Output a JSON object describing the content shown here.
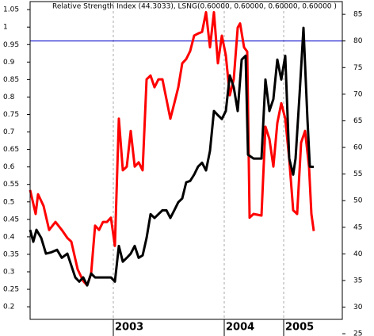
{
  "chart_data": {
    "type": "line",
    "title": "Relative Strength Index (44.3033), LSNG(0.60000, 0.60000, 0.60000, 0.60000 )",
    "xlim": [
      0,
      394
    ],
    "xticks": [
      {
        "value": 105,
        "label": "2003"
      },
      {
        "value": 245,
        "label": "2004"
      },
      {
        "value": 320,
        "label": "2005"
      }
    ],
    "ylim": [
      0.164,
      1.073
    ],
    "yticks": [
      1.05,
      1.0,
      0.95,
      0.9,
      0.85,
      0.8,
      0.75,
      0.7,
      0.65,
      0.6,
      0.55,
      0.5,
      0.45,
      0.4,
      0.35,
      0.3,
      0.25,
      0.2
    ],
    "y2lim": [
      27.7,
      87.4
    ],
    "y2ticks": [
      85,
      80,
      75,
      70,
      65,
      60,
      55,
      50,
      45,
      40,
      35,
      30,
      25
    ],
    "reference_line": {
      "axis": "y2",
      "value": 80,
      "color": "#0000cc"
    },
    "grid": true,
    "series": [
      {
        "name": "Relative Strength Index",
        "color": "#ff0000",
        "axis": "y2",
        "x": [
          0,
          7,
          10,
          17,
          24,
          32,
          40,
          47,
          52,
          60,
          67,
          72,
          77,
          82,
          87,
          92,
          97,
          102,
          107,
          112,
          117,
          122,
          127,
          132,
          137,
          142,
          147,
          152,
          157,
          162,
          167,
          172,
          177,
          182,
          187,
          192,
          197,
          202,
          207,
          212,
          217,
          222,
          227,
          232,
          237,
          242,
          247,
          252,
          257,
          262,
          265,
          270,
          274,
          277,
          282,
          292,
          297,
          302,
          307,
          312,
          317,
          322,
          327,
          332,
          337,
          342,
          347,
          352,
          355,
          358
        ],
        "values": [
          52.0,
          47.5,
          51.2,
          49.0,
          44.5,
          46.0,
          44.5,
          43.0,
          42.3,
          37.1,
          34.9,
          34.1,
          36.3,
          45.3,
          44.5,
          46.0,
          46.0,
          46.8,
          41.5,
          65.4,
          55.7,
          56.4,
          63.1,
          56.4,
          57.2,
          55.7,
          72.8,
          73.5,
          71.3,
          72.8,
          72.8,
          69.1,
          65.4,
          68.3,
          71.3,
          75.8,
          76.6,
          78.1,
          81.0,
          81.4,
          81.7,
          85.4,
          78.8,
          85.4,
          75.8,
          81.0,
          77.3,
          69.8,
          72.8,
          82.5,
          83.3,
          78.8,
          78.0,
          46.8,
          47.5,
          47.2,
          63.9,
          61.6,
          56.4,
          64.6,
          68.3,
          65.4,
          57.9,
          48.2,
          47.5,
          60.9,
          63.1,
          56.4,
          47.5,
          44.3
        ]
      },
      {
        "name": "LSNG",
        "color": "#000000",
        "x": [
          0,
          4,
          8,
          14,
          20,
          27,
          34,
          40,
          47,
          52,
          57,
          62,
          67,
          72,
          77,
          82,
          92,
          102,
          107,
          112,
          117,
          122,
          127,
          132,
          137,
          142,
          147,
          152,
          157,
          162,
          167,
          172,
          177,
          182,
          187,
          192,
          197,
          202,
          207,
          212,
          217,
          222,
          227,
          232,
          237,
          242,
          247,
          252,
          257,
          262,
          267,
          272,
          275,
          282,
          292,
          297,
          302,
          307,
          312,
          317,
          322,
          327,
          332,
          335,
          340,
          345,
          350,
          353,
          358
        ],
        "values": [
          0.42,
          0.386,
          0.42,
          0.397,
          0.352,
          0.356,
          0.363,
          0.34,
          0.352,
          0.318,
          0.284,
          0.272,
          0.284,
          0.261,
          0.295,
          0.284,
          0.284,
          0.284,
          0.272,
          0.374,
          0.329,
          0.34,
          0.352,
          0.374,
          0.34,
          0.347,
          0.397,
          0.465,
          0.454,
          0.465,
          0.476,
          0.476,
          0.454,
          0.476,
          0.499,
          0.51,
          0.556,
          0.56,
          0.578,
          0.601,
          0.612,
          0.59,
          0.646,
          0.76,
          0.748,
          0.737,
          0.76,
          0.862,
          0.828,
          0.76,
          0.907,
          0.918,
          0.635,
          0.624,
          0.624,
          0.85,
          0.76,
          0.794,
          0.907,
          0.85,
          0.918,
          0.624,
          0.578,
          0.624,
          0.805,
          0.998,
          0.737,
          0.601,
          0.6
        ]
      }
    ]
  }
}
